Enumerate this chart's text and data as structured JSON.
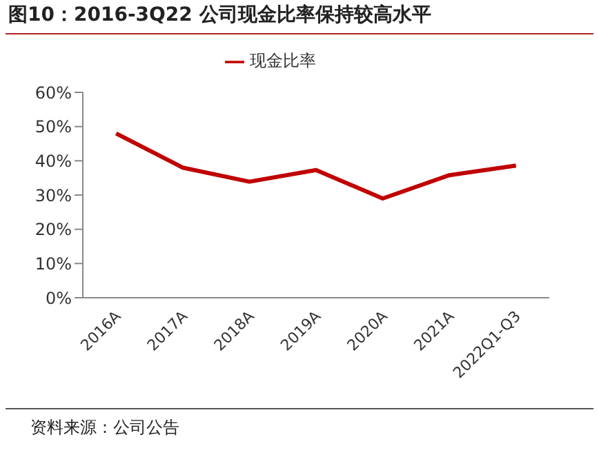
{
  "chart_data": {
    "type": "line",
    "title": "图10：2016-3Q22 公司现金比率保持较高水平",
    "categories": [
      "2016A",
      "2017A",
      "2018A",
      "2019A",
      "2020A",
      "2021A",
      "2022Q1-Q3"
    ],
    "series": [
      {
        "name": "现金比率",
        "color": "#c00000",
        "values": [
          48.0,
          38.0,
          33.9,
          37.3,
          29.0,
          35.8,
          38.6
        ]
      }
    ],
    "ylim": [
      0,
      60
    ],
    "yticks": [
      {
        "value": 0,
        "label": "0%"
      },
      {
        "value": 10,
        "label": "10%"
      },
      {
        "value": 20,
        "label": "20%"
      },
      {
        "value": 30,
        "label": "30%"
      },
      {
        "value": 40,
        "label": "40%"
      },
      {
        "value": 50,
        "label": "50%"
      },
      {
        "value": 60,
        "label": "60%"
      }
    ],
    "grid": false,
    "legend": "top",
    "marker": "none",
    "line_style": "solid",
    "annotations": [
      "资料来源：公司公告"
    ]
  }
}
